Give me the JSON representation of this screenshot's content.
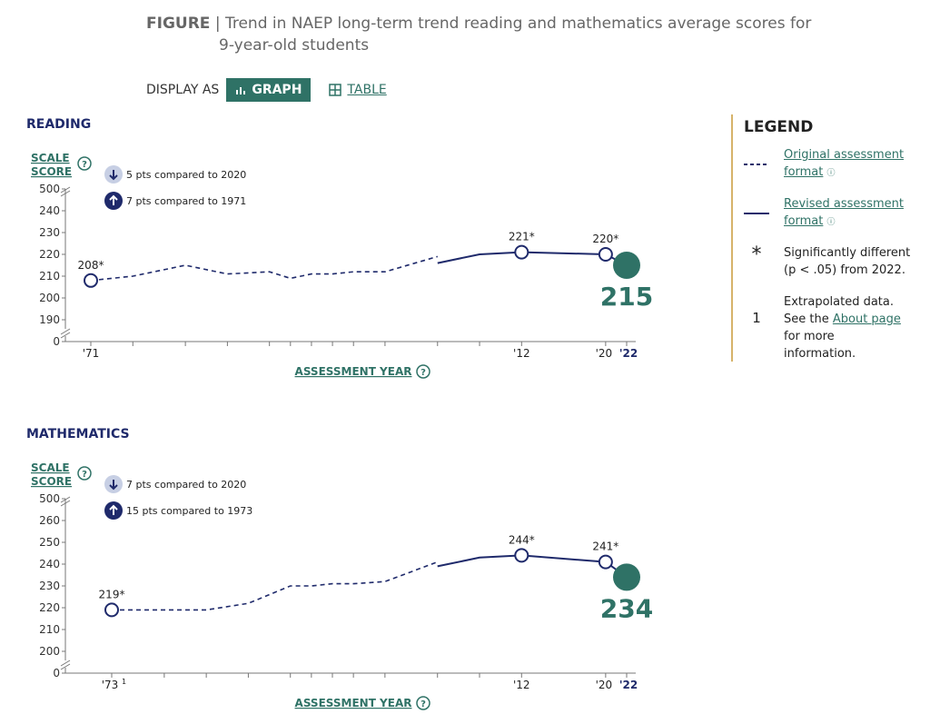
{
  "figure": {
    "label": "FIGURE",
    "separator": "|",
    "title_line1": "Trend in NAEP long-term trend reading and mathematics average scores for",
    "title_line2": "9-year-old students"
  },
  "display": {
    "label": "DISPLAY AS",
    "graph_label": "GRAPH",
    "table_label": "TABLE"
  },
  "legend": {
    "title": "LEGEND",
    "original_line1": "Original assessment",
    "original_line2": "format",
    "revised_line1": "Revised assessment",
    "revised_line2": "format",
    "sig_symbol": "*",
    "sig_line1": "Significantly different",
    "sig_line2": "(p < .05) from 2022.",
    "extrap_symbol": "1",
    "extrap_line1": "Extrapolated data.",
    "extrap_line2_pre": "See the ",
    "extrap_line2_link": "About page",
    "extrap_line3": "for more",
    "extrap_line4": "information."
  },
  "colors": {
    "navy": "#1f2a6b",
    "teal": "#2f7266",
    "badge_light": "#c7cfe4",
    "axis": "#777777"
  },
  "chart_data": [
    {
      "type": "line",
      "title": "READING",
      "ylabel": "SCALE SCORE",
      "xlabel": "ASSESSMENT YEAR",
      "y_ticks": [
        "0",
        "190",
        "200",
        "210",
        "220",
        "230",
        "240",
        "500"
      ],
      "x_tick_labels": [
        "'71",
        "'12",
        "'20",
        "'22"
      ],
      "comparisons": [
        {
          "direction": "down",
          "text": "5 pts compared to 2020"
        },
        {
          "direction": "up",
          "text": "7 pts compared to 1971"
        }
      ],
      "series": [
        {
          "name": "Original assessment format",
          "style": "dashed",
          "x": [
            1971,
            1975,
            1980,
            1984,
            1988,
            1990,
            1992,
            1994,
            1996,
            1999,
            2004
          ],
          "values": [
            208,
            210,
            215,
            211,
            212,
            209,
            211,
            211,
            212,
            212,
            219
          ]
        },
        {
          "name": "Revised assessment format",
          "style": "solid",
          "x": [
            2004,
            2008,
            2012,
            2020,
            2022
          ],
          "values": [
            216,
            220,
            221,
            220,
            215
          ]
        }
      ],
      "labeled_points": [
        {
          "x": 1971,
          "value": 208,
          "label": "208*"
        },
        {
          "x": 2012,
          "value": 221,
          "label": "221*"
        },
        {
          "x": 2020,
          "value": 220,
          "label": "220*"
        },
        {
          "x": 2022,
          "value": 215,
          "label": "215",
          "highlight": true
        }
      ]
    },
    {
      "type": "line",
      "title": "MATHEMATICS",
      "ylabel": "SCALE SCORE",
      "xlabel": "ASSESSMENT YEAR",
      "y_ticks": [
        "0",
        "200",
        "210",
        "220",
        "230",
        "240",
        "250",
        "260",
        "500"
      ],
      "x_tick_labels": [
        "'73",
        "1",
        "'12",
        "'20",
        "'22"
      ],
      "comparisons": [
        {
          "direction": "down",
          "text": "7 pts compared to 2020"
        },
        {
          "direction": "up",
          "text": "15 pts compared to 1973"
        }
      ],
      "series": [
        {
          "name": "Original assessment format",
          "style": "dashed",
          "x": [
            1973,
            1978,
            1982,
            1986,
            1990,
            1992,
            1994,
            1996,
            1999,
            2004
          ],
          "values": [
            219,
            219,
            219,
            222,
            230,
            230,
            231,
            231,
            232,
            241
          ]
        },
        {
          "name": "Revised assessment format",
          "style": "solid",
          "x": [
            2004,
            2008,
            2012,
            2020,
            2022
          ],
          "values": [
            239,
            243,
            244,
            241,
            234
          ]
        }
      ],
      "labeled_points": [
        {
          "x": 1973,
          "value": 219,
          "label": "219*"
        },
        {
          "x": 2012,
          "value": 244,
          "label": "244*"
        },
        {
          "x": 2020,
          "value": 241,
          "label": "241*"
        },
        {
          "x": 2022,
          "value": 234,
          "label": "234",
          "highlight": true
        }
      ]
    }
  ]
}
